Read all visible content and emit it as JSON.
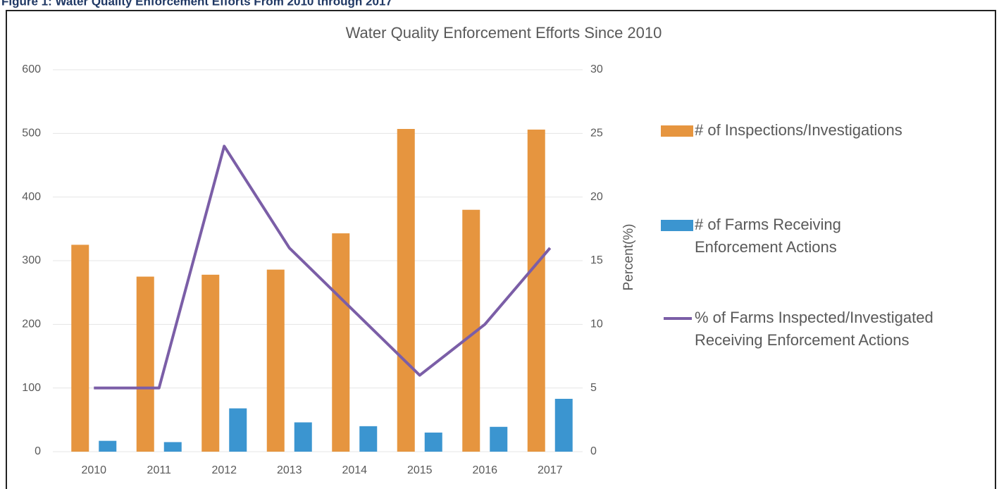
{
  "figure_caption": "Figure 1: Water Quality Enforcement Efforts From 2010 through 2017",
  "chart_data": {
    "type": "bar",
    "title": "Water Quality Enforcement Efforts Since 2010",
    "categories": [
      "2010",
      "2011",
      "2012",
      "2013",
      "2014",
      "2015",
      "2016",
      "2017"
    ],
    "series": [
      {
        "name": "# of Inspections/Investigations",
        "color": "#e6953f",
        "type": "bar",
        "values": [
          325,
          275,
          278,
          286,
          343,
          507,
          380,
          506
        ]
      },
      {
        "name": "# of Farms Receiving Enforcement Actions",
        "color": "#3b95d0",
        "type": "bar",
        "values": [
          17,
          15,
          68,
          46,
          40,
          30,
          39,
          83
        ]
      },
      {
        "name": "% of Farms Inspected/Investigated Receiving Enforcement Actions",
        "color": "#7b5ea7",
        "type": "line",
        "axis": "y2",
        "values": [
          5,
          5,
          24,
          16,
          11,
          6,
          10,
          16
        ]
      }
    ],
    "y2_label": "Percent(%)",
    "ylim": [
      0,
      600
    ],
    "yticks": [
      0,
      100,
      200,
      300,
      400,
      500,
      600
    ],
    "y2lim": [
      0,
      30
    ],
    "y2ticks": [
      0,
      5,
      10,
      15,
      20,
      25,
      30
    ],
    "grid": true,
    "legend": "right"
  }
}
